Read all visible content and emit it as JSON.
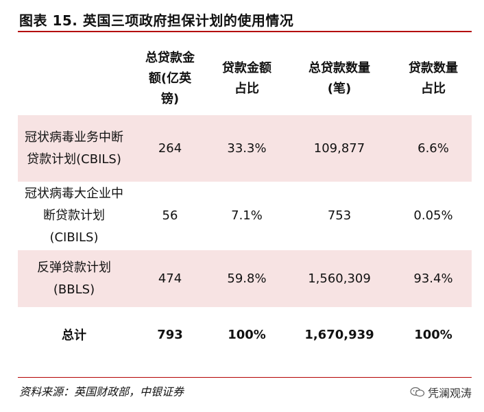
{
  "title": "图表 15. 英国三项政府担保计划的使用情况",
  "table": {
    "headers": [
      "",
      "总贷款金额(亿英镑)",
      "贷款金额占比",
      "总贷款数量(笔)",
      "贷款数量占比"
    ],
    "rows": [
      {
        "name": "冠状病毒业务中断贷款计划(CBILS)",
        "amount": "264",
        "amount_share": "33.3%",
        "count": "109,877",
        "count_share": "6.6%"
      },
      {
        "name": "冠状病毒大企业中断贷款计划(CIBILS)",
        "amount": "56",
        "amount_share": "7.1%",
        "count": "753",
        "count_share": "0.05%"
      },
      {
        "name": "反弹贷款计划(BBLS)",
        "amount": "474",
        "amount_share": "59.8%",
        "count": "1,560,309",
        "count_share": "93.4%"
      }
    ],
    "total": {
      "name": "总计",
      "amount": "793",
      "amount_share": "100%",
      "count": "1,670,939",
      "count_share": "100%"
    }
  },
  "source": "资料来源：英国财政部，中银证券",
  "watermark": "凭澜观涛",
  "colors": {
    "accent": "#b30000",
    "band": "#f7e3e3"
  },
  "icons": {
    "watermark_icon": "wechat-icon"
  }
}
